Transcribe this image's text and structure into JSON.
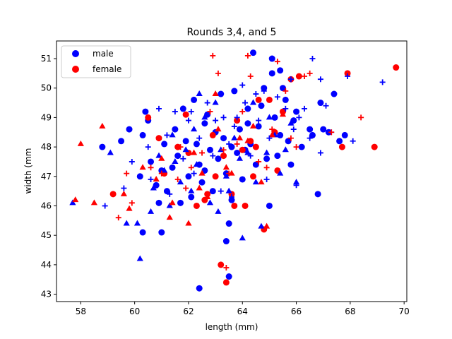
{
  "chart_data": {
    "type": "scatter",
    "title": "Rounds 3,4, and 5",
    "xlabel": "length (mm)",
    "ylabel": "width (mm",
    "xlim": [
      57.1,
      70.1
    ],
    "ylim": [
      42.75,
      51.6
    ],
    "xticks": [
      58,
      60,
      62,
      64,
      66,
      68,
      70
    ],
    "yticks": [
      43,
      44,
      45,
      46,
      47,
      48,
      49,
      50,
      51
    ],
    "grid": false,
    "legend": {
      "placement": "top-left",
      "entries": [
        "male",
        "female"
      ]
    },
    "colors": {
      "male": "#0000ff",
      "female": "#ff0000"
    },
    "series": [
      {
        "name": "male",
        "group": "round 3",
        "marker": "circle",
        "color": "#0000ff",
        "points": [
          [
            58.8,
            48.0
          ],
          [
            59.5,
            48.2
          ],
          [
            59.8,
            48.6
          ],
          [
            60.2,
            47.0
          ],
          [
            60.3,
            48.4
          ],
          [
            60.4,
            49.2
          ],
          [
            60.5,
            48.9
          ],
          [
            60.6,
            47.5
          ],
          [
            60.8,
            46.7
          ],
          [
            60.9,
            46.1
          ],
          [
            61.0,
            47.2
          ],
          [
            61.1,
            48.1
          ],
          [
            61.2,
            46.5
          ],
          [
            61.4,
            47.3
          ],
          [
            61.5,
            48.6
          ],
          [
            61.6,
            47.7
          ],
          [
            61.8,
            49.3
          ],
          [
            61.9,
            48.2
          ],
          [
            62.0,
            47.0
          ],
          [
            62.1,
            46.3
          ],
          [
            62.2,
            49.6
          ],
          [
            62.3,
            48.1
          ],
          [
            62.4,
            47.4
          ],
          [
            62.5,
            46.8
          ],
          [
            62.6,
            48.8
          ],
          [
            62.7,
            49.1
          ],
          [
            62.8,
            47.9
          ],
          [
            62.9,
            46.5
          ],
          [
            63.0,
            48.5
          ],
          [
            63.1,
            47.6
          ],
          [
            63.2,
            49.8
          ],
          [
            63.3,
            48.3
          ],
          [
            63.4,
            47.1
          ],
          [
            63.5,
            45.4
          ],
          [
            63.6,
            48.0
          ],
          [
            63.7,
            49.9
          ],
          [
            63.8,
            47.8
          ],
          [
            63.9,
            48.6
          ],
          [
            64.0,
            46.9
          ],
          [
            64.1,
            47.9
          ],
          [
            64.2,
            49.3
          ],
          [
            64.3,
            48.1
          ],
          [
            64.4,
            51.2
          ],
          [
            64.5,
            47.4
          ],
          [
            64.6,
            48.7
          ],
          [
            64.7,
            49.4
          ],
          [
            64.8,
            50.0
          ],
          [
            64.9,
            47.6
          ],
          [
            65.0,
            46.0
          ],
          [
            65.1,
            51.0
          ],
          [
            65.2,
            49.0
          ],
          [
            65.3,
            47.7
          ],
          [
            65.4,
            48.4
          ],
          [
            65.5,
            50.0
          ],
          [
            65.6,
            49.6
          ],
          [
            65.7,
            48.2
          ],
          [
            65.8,
            47.4
          ],
          [
            65.9,
            48.9
          ],
          [
            66.0,
            49.2
          ],
          [
            66.2,
            48.0
          ],
          [
            66.5,
            48.6
          ],
          [
            66.6,
            48.4
          ],
          [
            66.8,
            46.4
          ],
          [
            66.9,
            49.5
          ],
          [
            67.0,
            48.6
          ],
          [
            67.2,
            48.5
          ],
          [
            67.4,
            49.8
          ],
          [
            67.6,
            48.2
          ],
          [
            67.8,
            48.4
          ],
          [
            60.3,
            45.1
          ],
          [
            61.0,
            45.1
          ],
          [
            62.4,
            43.2
          ],
          [
            63.4,
            44.8
          ],
          [
            63.5,
            43.6
          ],
          [
            63.6,
            46.2
          ],
          [
            62.6,
            47.2
          ],
          [
            61.7,
            46.1
          ],
          [
            65.1,
            50.5
          ],
          [
            65.4,
            50.6
          ],
          [
            64.2,
            48.8
          ]
        ]
      },
      {
        "name": "female",
        "group": "round 3",
        "marker": "circle",
        "color": "#ff0000",
        "points": [
          [
            59.2,
            46.4
          ],
          [
            60.5,
            49.0
          ],
          [
            60.9,
            48.3
          ],
          [
            61.1,
            47.1
          ],
          [
            61.6,
            48.0
          ],
          [
            61.9,
            49.1
          ],
          [
            62.0,
            47.8
          ],
          [
            62.3,
            46.0
          ],
          [
            62.6,
            46.2
          ],
          [
            62.9,
            48.4
          ],
          [
            63.0,
            47.0
          ],
          [
            63.2,
            44.0
          ],
          [
            63.4,
            43.4
          ],
          [
            63.6,
            46.4
          ],
          [
            63.7,
            46.0
          ],
          [
            63.8,
            48.9
          ],
          [
            64.0,
            47.9
          ],
          [
            64.1,
            46.0
          ],
          [
            64.3,
            48.2
          ],
          [
            64.4,
            47.0
          ],
          [
            64.6,
            49.6
          ],
          [
            64.8,
            45.2
          ],
          [
            65.0,
            49.6
          ],
          [
            65.2,
            48.5
          ],
          [
            65.5,
            49.2
          ],
          [
            65.8,
            50.3
          ],
          [
            66.1,
            50.4
          ],
          [
            67.7,
            48.0
          ],
          [
            67.9,
            50.5
          ],
          [
            68.9,
            48.0
          ],
          [
            69.7,
            50.7
          ],
          [
            62.7,
            46.4
          ],
          [
            63.3,
            47.7
          ],
          [
            64.5,
            48.0
          ],
          [
            65.3,
            47.2
          ]
        ]
      },
      {
        "name": "",
        "group": "round 4 male",
        "marker": "triangle",
        "color": "#0000ff",
        "points": [
          [
            57.7,
            46.1
          ],
          [
            59.1,
            47.8
          ],
          [
            59.7,
            45.4
          ],
          [
            60.1,
            45.4
          ],
          [
            60.2,
            44.2
          ],
          [
            60.6,
            45.8
          ],
          [
            60.7,
            46.6
          ],
          [
            60.9,
            47.7
          ],
          [
            61.1,
            47.2
          ],
          [
            61.3,
            46.0
          ],
          [
            61.5,
            47.5
          ],
          [
            61.7,
            46.8
          ],
          [
            61.9,
            47.9
          ],
          [
            62.1,
            46.5
          ],
          [
            62.3,
            47.4
          ],
          [
            62.4,
            49.8
          ],
          [
            62.6,
            49.0
          ],
          [
            62.8,
            46.1
          ],
          [
            63.0,
            49.5
          ],
          [
            63.2,
            47.9
          ],
          [
            63.4,
            47.0
          ],
          [
            63.5,
            46.5
          ],
          [
            63.7,
            48.3
          ],
          [
            63.9,
            47.6
          ],
          [
            64.0,
            44.9
          ],
          [
            64.2,
            47.8
          ],
          [
            64.4,
            49.5
          ],
          [
            64.5,
            46.8
          ],
          [
            64.7,
            45.3
          ],
          [
            64.9,
            47.8
          ],
          [
            65.0,
            49.0
          ],
          [
            65.2,
            48.4
          ],
          [
            65.4,
            47.1
          ],
          [
            65.6,
            47.9
          ],
          [
            65.8,
            48.8
          ],
          [
            66.0,
            46.8
          ],
          [
            63.1,
            45.8
          ],
          [
            61.4,
            48.4
          ],
          [
            62.2,
            48.6
          ]
        ]
      },
      {
        "name": "",
        "group": "round 4 female",
        "marker": "triangle",
        "color": "#ff0000",
        "points": [
          [
            57.8,
            46.2
          ],
          [
            58.0,
            48.1
          ],
          [
            58.5,
            46.1
          ],
          [
            58.8,
            48.7
          ],
          [
            59.6,
            46.4
          ],
          [
            59.8,
            45.9
          ],
          [
            60.3,
            47.3
          ],
          [
            60.8,
            46.9
          ],
          [
            61.3,
            45.6
          ],
          [
            61.4,
            46.1
          ],
          [
            62.0,
            45.4
          ],
          [
            62.2,
            47.8
          ],
          [
            62.5,
            47.1
          ],
          [
            62.7,
            46.3
          ],
          [
            63.0,
            49.8
          ],
          [
            63.1,
            48.6
          ],
          [
            63.4,
            47.3
          ],
          [
            63.6,
            47.1
          ],
          [
            63.9,
            48.3
          ],
          [
            64.2,
            48.2
          ],
          [
            64.4,
            48.7
          ],
          [
            64.7,
            46.8
          ],
          [
            64.9,
            45.3
          ],
          [
            65.1,
            48.4
          ],
          [
            65.5,
            49.1
          ],
          [
            61.0,
            47.6
          ],
          [
            62.4,
            46.6
          ]
        ]
      },
      {
        "name": "",
        "group": "round 5 male",
        "marker": "plus",
        "color": "#0000ff",
        "points": [
          [
            58.9,
            46.0
          ],
          [
            59.6,
            46.6
          ],
          [
            59.9,
            47.5
          ],
          [
            60.5,
            48.0
          ],
          [
            60.9,
            49.3
          ],
          [
            61.2,
            48.4
          ],
          [
            61.5,
            49.2
          ],
          [
            61.8,
            47.6
          ],
          [
            62.0,
            48.9
          ],
          [
            62.2,
            47.1
          ],
          [
            62.4,
            48.3
          ],
          [
            62.7,
            49.5
          ],
          [
            62.9,
            47.7
          ],
          [
            63.0,
            48.9
          ],
          [
            63.2,
            46.5
          ],
          [
            63.3,
            49.0
          ],
          [
            63.5,
            48.1
          ],
          [
            63.7,
            48.7
          ],
          [
            63.8,
            49.0
          ],
          [
            64.0,
            50.1
          ],
          [
            64.1,
            49.5
          ],
          [
            64.3,
            47.7
          ],
          [
            64.6,
            48.9
          ],
          [
            64.8,
            49.9
          ],
          [
            65.0,
            48.3
          ],
          [
            65.3,
            49.7
          ],
          [
            65.6,
            49.3
          ],
          [
            65.9,
            48.6
          ],
          [
            66.1,
            49.0
          ],
          [
            66.3,
            49.3
          ],
          [
            66.5,
            48.3
          ],
          [
            66.6,
            51.0
          ],
          [
            66.9,
            50.3
          ],
          [
            67.1,
            49.4
          ],
          [
            67.3,
            48.5
          ],
          [
            67.9,
            50.4
          ],
          [
            68.1,
            48.2
          ],
          [
            69.2,
            50.2
          ],
          [
            65.8,
            50.3
          ],
          [
            64.5,
            49.8
          ],
          [
            60.6,
            46.9
          ],
          [
            62.1,
            49.2
          ],
          [
            63.6,
            46.3
          ],
          [
            64.9,
            46.9
          ],
          [
            66.0,
            46.7
          ],
          [
            66.9,
            47.8
          ],
          [
            61.3,
            46.4
          ]
        ]
      },
      {
        "name": "",
        "group": "round 5 female",
        "marker": "plus",
        "color": "#ff0000",
        "points": [
          [
            59.4,
            45.6
          ],
          [
            59.7,
            47.1
          ],
          [
            59.9,
            46.1
          ],
          [
            60.6,
            47.3
          ],
          [
            61.0,
            47.1
          ],
          [
            61.7,
            48.0
          ],
          [
            61.9,
            46.6
          ],
          [
            62.1,
            47.3
          ],
          [
            62.5,
            47.8
          ],
          [
            62.9,
            51.1
          ],
          [
            63.1,
            50.5
          ],
          [
            63.3,
            47.9
          ],
          [
            63.4,
            43.9
          ],
          [
            63.5,
            47.1
          ],
          [
            63.8,
            48.1
          ],
          [
            64.0,
            49.2
          ],
          [
            64.2,
            51.1
          ],
          [
            64.3,
            50.4
          ],
          [
            64.6,
            47.5
          ],
          [
            64.9,
            47.3
          ],
          [
            65.1,
            48.6
          ],
          [
            65.3,
            50.9
          ],
          [
            65.6,
            49.9
          ],
          [
            65.8,
            48.3
          ],
          [
            66.0,
            48.0
          ],
          [
            66.3,
            50.4
          ],
          [
            66.5,
            50.5
          ],
          [
            67.3,
            48.5
          ],
          [
            68.4,
            49.0
          ],
          [
            62.8,
            49.2
          ],
          [
            61.6,
            46.9
          ]
        ]
      }
    ]
  }
}
